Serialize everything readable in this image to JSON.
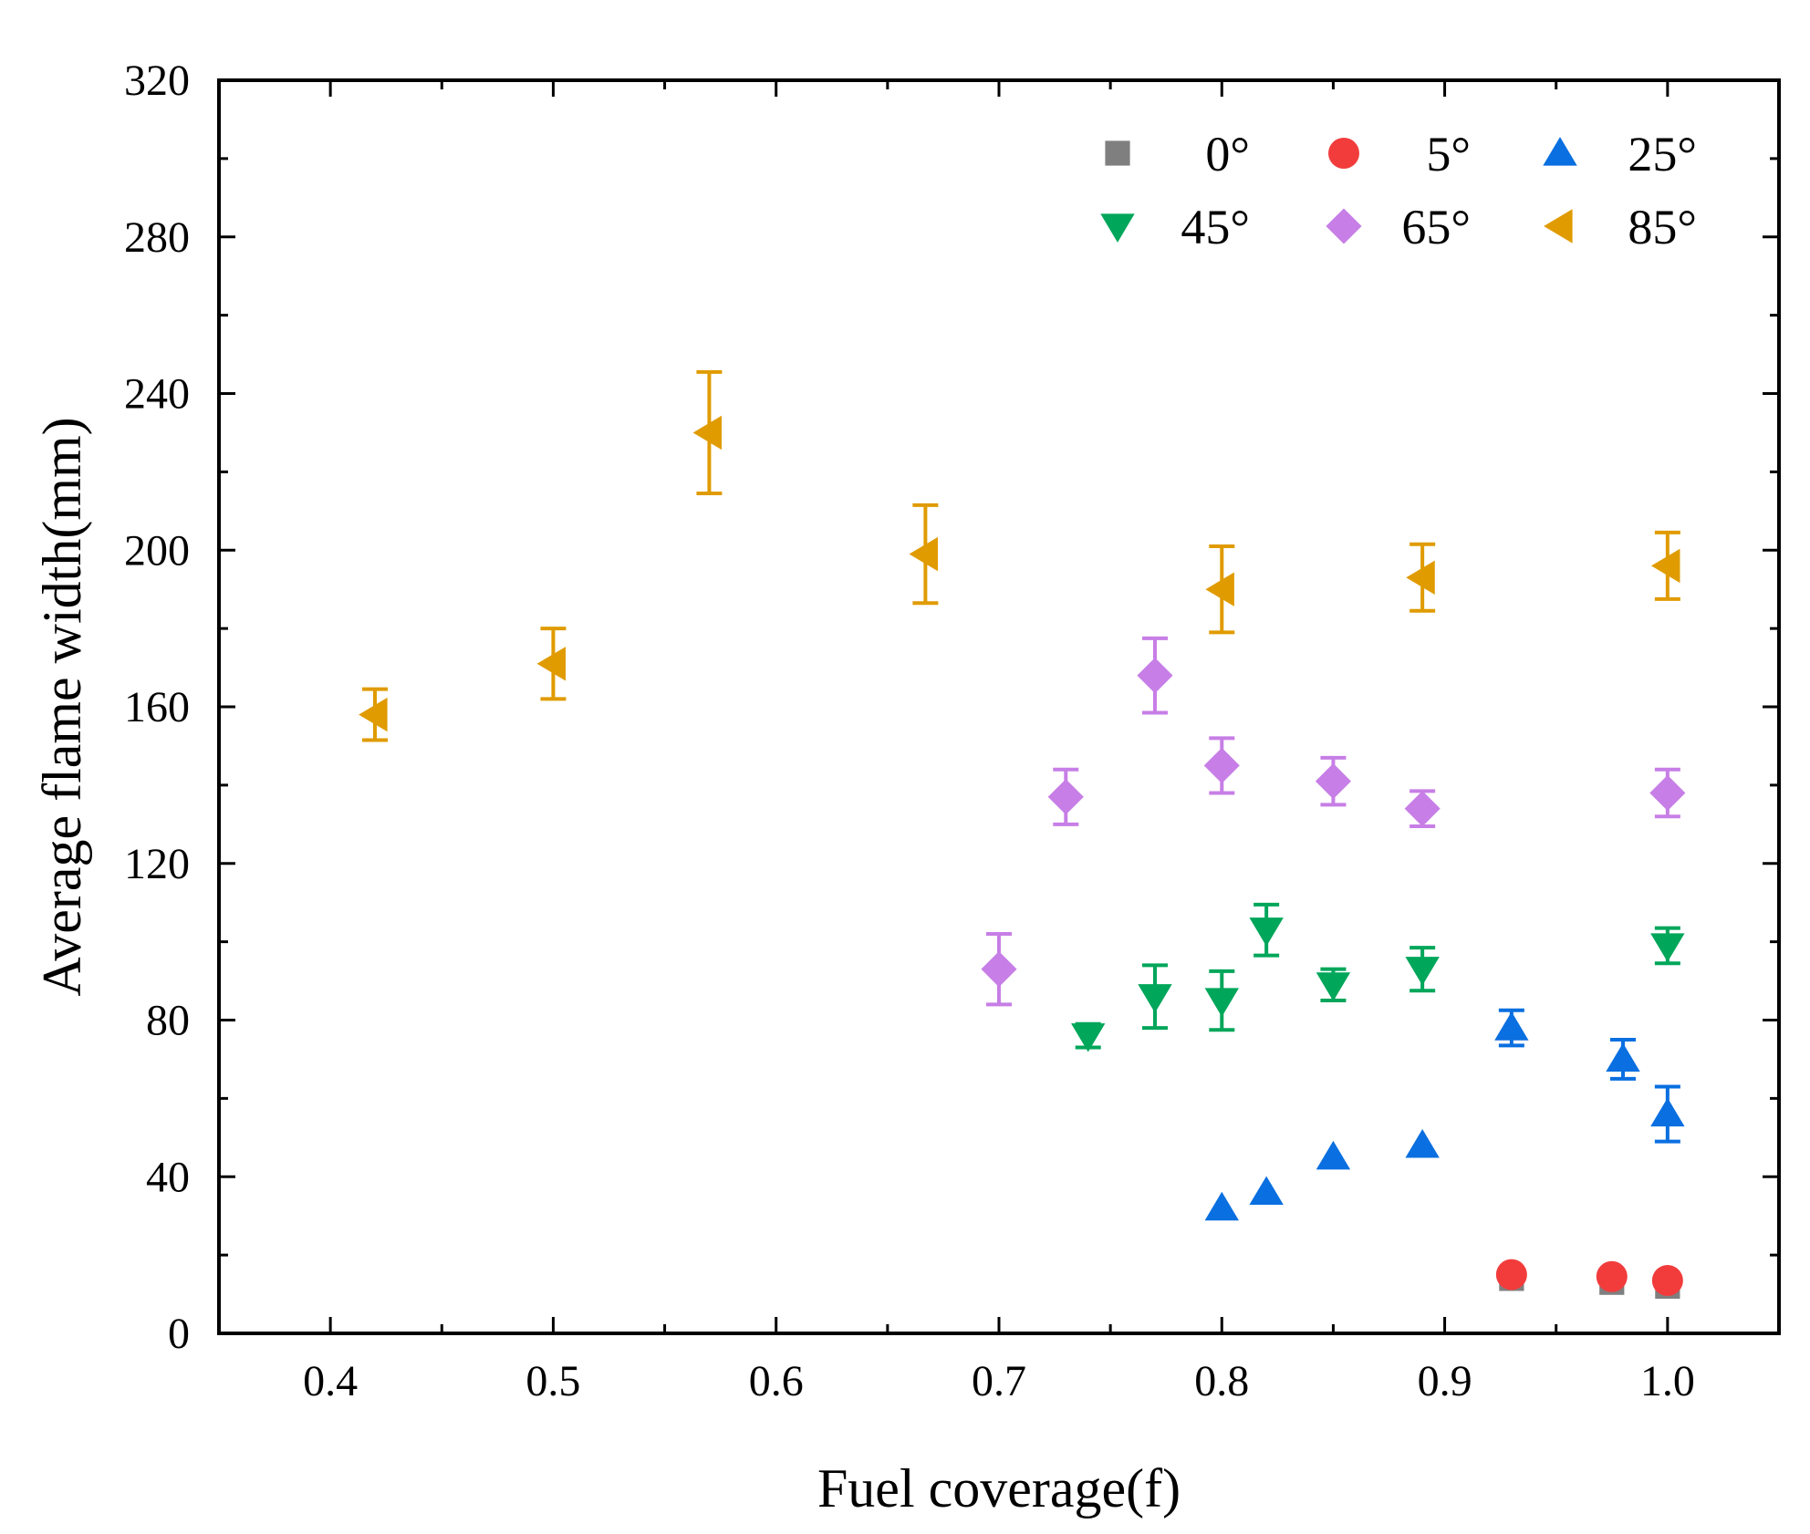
{
  "chart_data": {
    "type": "scatter",
    "title": "",
    "xlabel": "Fuel coverage(f)",
    "ylabel": "Average flame width(mm)",
    "xlim": [
      0.35,
      1.05
    ],
    "ylim": [
      0,
      320
    ],
    "xticks": [
      0.4,
      0.5,
      0.6,
      0.7,
      0.8,
      0.9,
      1.0
    ],
    "xtick_labels": [
      "0.4",
      "0.5",
      "0.6",
      "0.7",
      "0.8",
      "0.9",
      "1.0"
    ],
    "yticks": [
      0,
      40,
      80,
      120,
      160,
      200,
      240,
      280,
      320
    ],
    "ytick_labels": [
      "0",
      "40",
      "80",
      "120",
      "160",
      "200",
      "240",
      "280",
      "320"
    ],
    "grid": false,
    "legend_position": "top-right",
    "series": [
      {
        "name": "0°",
        "marker": "square",
        "color": "#7f7f7f",
        "points": [
          {
            "x": 0.93,
            "y": 14,
            "err": 0
          },
          {
            "x": 0.975,
            "y": 13,
            "err": 0
          },
          {
            "x": 1.0,
            "y": 12,
            "err": 0
          }
        ]
      },
      {
        "name": "5°",
        "marker": "circle",
        "color": "#f23c3c",
        "points": [
          {
            "x": 0.93,
            "y": 15,
            "err": 0
          },
          {
            "x": 0.975,
            "y": 14.5,
            "err": 0
          },
          {
            "x": 1.0,
            "y": 13.5,
            "err": 0
          }
        ]
      },
      {
        "name": "25°",
        "marker": "triangle-up",
        "color": "#0a6fe0",
        "points": [
          {
            "x": 0.8,
            "y": 32,
            "err": 0
          },
          {
            "x": 0.82,
            "y": 36,
            "err": 0
          },
          {
            "x": 0.85,
            "y": 45,
            "err": 0
          },
          {
            "x": 0.89,
            "y": 48,
            "err": 0
          },
          {
            "x": 0.93,
            "y": 78,
            "err": 4.5
          },
          {
            "x": 0.98,
            "y": 70,
            "err": 5
          },
          {
            "x": 1.0,
            "y": 56,
            "err": 7
          }
        ]
      },
      {
        "name": "45°",
        "marker": "triangle-down",
        "color": "#00a65a",
        "points": [
          {
            "x": 0.74,
            "y": 76,
            "err": 3
          },
          {
            "x": 0.77,
            "y": 86,
            "err": 8
          },
          {
            "x": 0.8,
            "y": 85,
            "err": 7.5
          },
          {
            "x": 0.82,
            "y": 103,
            "err": 6.5
          },
          {
            "x": 0.85,
            "y": 89,
            "err": 4
          },
          {
            "x": 0.89,
            "y": 93,
            "err": 5.5
          },
          {
            "x": 1.0,
            "y": 99,
            "err": 4.5
          }
        ]
      },
      {
        "name": "65°",
        "marker": "diamond",
        "color": "#c77ee6",
        "points": [
          {
            "x": 0.7,
            "y": 93,
            "err": 9
          },
          {
            "x": 0.73,
            "y": 137,
            "err": 7
          },
          {
            "x": 0.77,
            "y": 168,
            "err": 9.5
          },
          {
            "x": 0.8,
            "y": 145,
            "err": 7
          },
          {
            "x": 0.85,
            "y": 141,
            "err": 6
          },
          {
            "x": 0.89,
            "y": 134,
            "err": 4.5
          },
          {
            "x": 1.0,
            "y": 138,
            "err": 6
          }
        ]
      },
      {
        "name": "85°",
        "marker": "triangle-left",
        "color": "#e09b00",
        "points": [
          {
            "x": 0.42,
            "y": 158,
            "err": 6.5
          },
          {
            "x": 0.5,
            "y": 171,
            "err": 9
          },
          {
            "x": 0.57,
            "y": 230,
            "err": 15.5
          },
          {
            "x": 0.667,
            "y": 199,
            "err": 12.5
          },
          {
            "x": 0.8,
            "y": 190,
            "err": 11
          },
          {
            "x": 0.89,
            "y": 193,
            "err": 8.5
          },
          {
            "x": 1.0,
            "y": 196,
            "err": 8.5
          }
        ]
      }
    ]
  }
}
